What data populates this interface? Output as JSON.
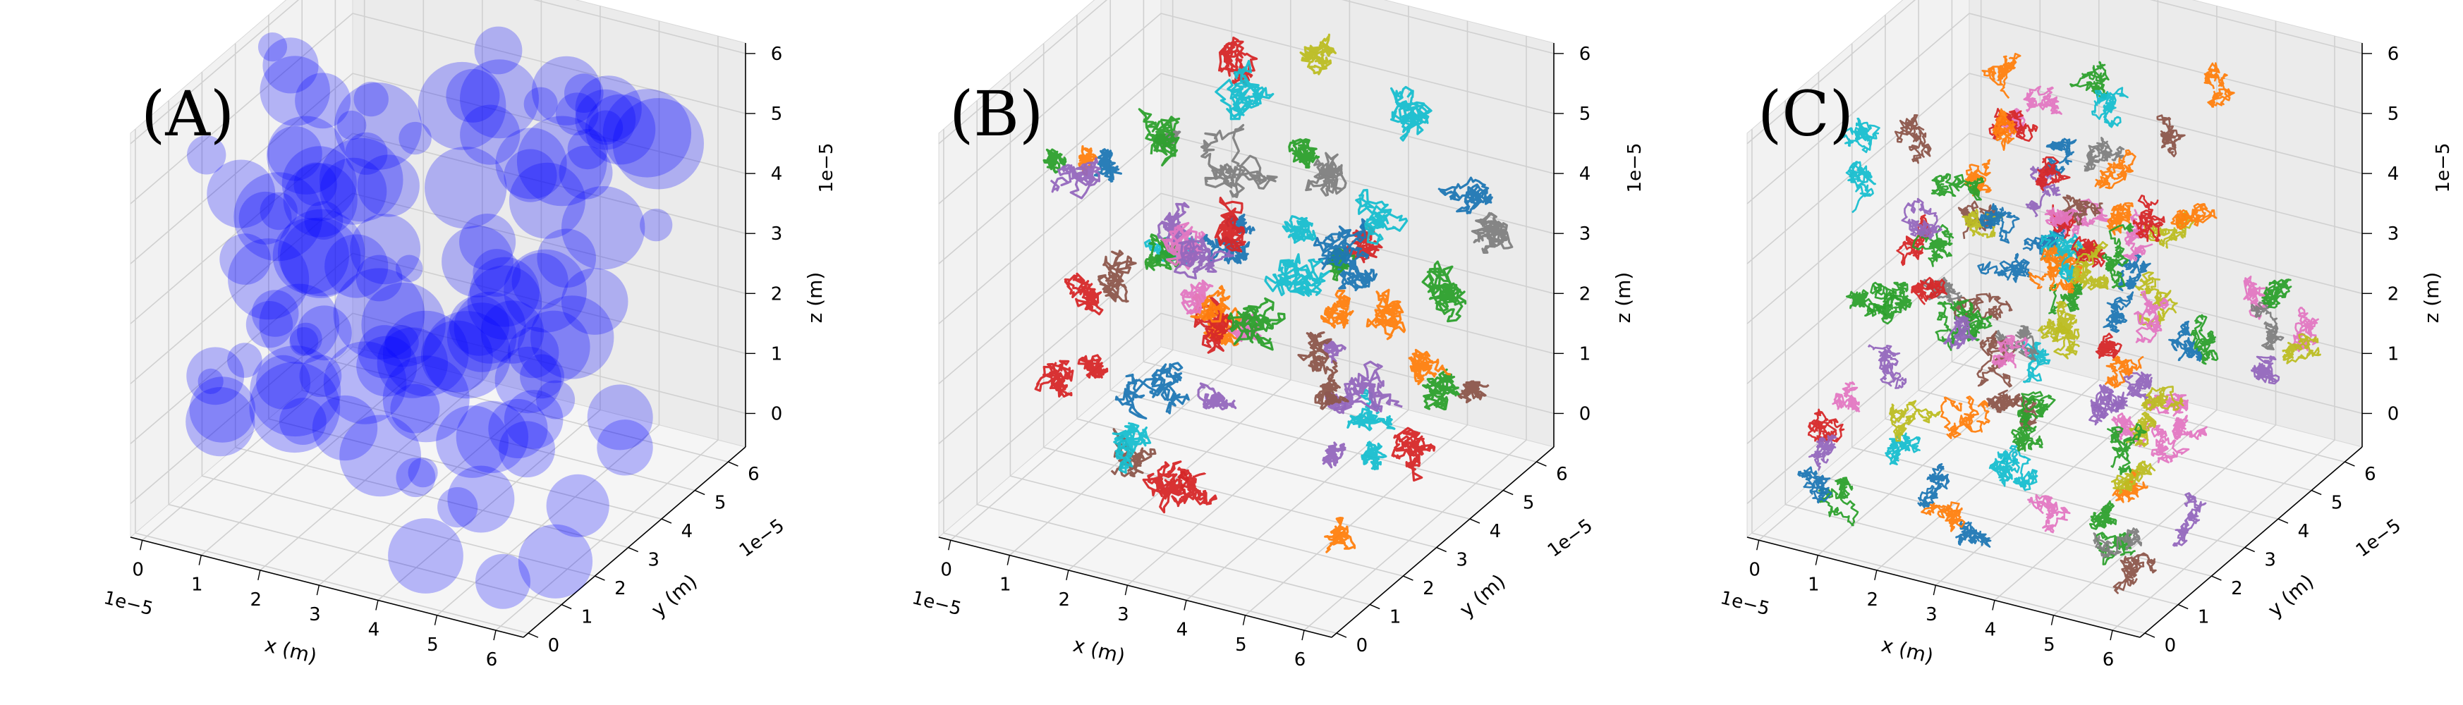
{
  "colors": {
    "spheres": "#0000ff",
    "tab10": [
      "#1f77b4",
      "#ff7f0e",
      "#2ca02c",
      "#d62728",
      "#9467bd",
      "#8c564b",
      "#e377c2",
      "#7f7f7f",
      "#bcbd22",
      "#17becf"
    ],
    "pane": "#f2f2f2",
    "grid": "#d0d0d0"
  },
  "chart_data": [
    {
      "type": "scatter",
      "panel_label": "(A)",
      "style": "translucent spheres",
      "xlabel": "x (m)",
      "ylabel": "y (m)",
      "zlabel": "z (m)",
      "x_offset_text": "1e−5",
      "y_offset_text": "1e−5",
      "z_offset_text": "1e−5",
      "xticks": [
        "0",
        "1",
        "2",
        "3",
        "4",
        "5",
        "6"
      ],
      "yticks": [
        "0",
        "1",
        "2",
        "3",
        "4",
        "5",
        "6"
      ],
      "zticks": [
        "0",
        "1",
        "2",
        "3",
        "4",
        "5",
        "6"
      ],
      "xlim": [
        0,
        6.9
      ],
      "ylim": [
        0,
        6.9
      ],
      "zlim": [
        0,
        6.9
      ],
      "grid": true,
      "legend": "none",
      "objects": "approximately 120 translucent blue spheres filling the cube"
    },
    {
      "type": "scatter",
      "panel_label": "(B)",
      "style": "multicolored random-walk clusters",
      "xlabel": "x (m)",
      "ylabel": "y (m)",
      "zlabel": "z (m)",
      "x_offset_text": "1e−5",
      "y_offset_text": "1e−5",
      "z_offset_text": "1e−5",
      "xticks": [
        "0",
        "1",
        "2",
        "3",
        "4",
        "5",
        "6"
      ],
      "yticks": [
        "0",
        "1",
        "2",
        "3",
        "4",
        "5",
        "6"
      ],
      "zticks": [
        "0",
        "1",
        "2",
        "3",
        "4",
        "5",
        "6"
      ],
      "xlim": [
        0,
        6.9
      ],
      "ylim": [
        0,
        6.9
      ],
      "zlim": [
        0,
        6.9
      ],
      "grid": true,
      "legend": "none",
      "objects": "approximately 60 compact colored random-walk clusters"
    },
    {
      "type": "line",
      "panel_label": "(C)",
      "style": "multicolored dense random-walk trajectories",
      "xlabel": "x (m)",
      "ylabel": "y (m)",
      "zlabel": "z (m)",
      "x_offset_text": "1e−5",
      "y_offset_text": "1e−5",
      "z_offset_text": "1e−5",
      "xticks": [
        "0",
        "1",
        "2",
        "3",
        "4",
        "5",
        "6"
      ],
      "yticks": [
        "0",
        "1",
        "2",
        "3",
        "4",
        "5",
        "6"
      ],
      "zticks": [
        "0",
        "1",
        "2",
        "3",
        "4",
        "5",
        "6"
      ],
      "xlim": [
        0,
        6.9
      ],
      "ylim": [
        0,
        6.9
      ],
      "zlim": [
        0,
        6.9
      ],
      "grid": true,
      "legend": "none",
      "objects": "dense tangled colored trajectories filling the whole cube"
    }
  ]
}
